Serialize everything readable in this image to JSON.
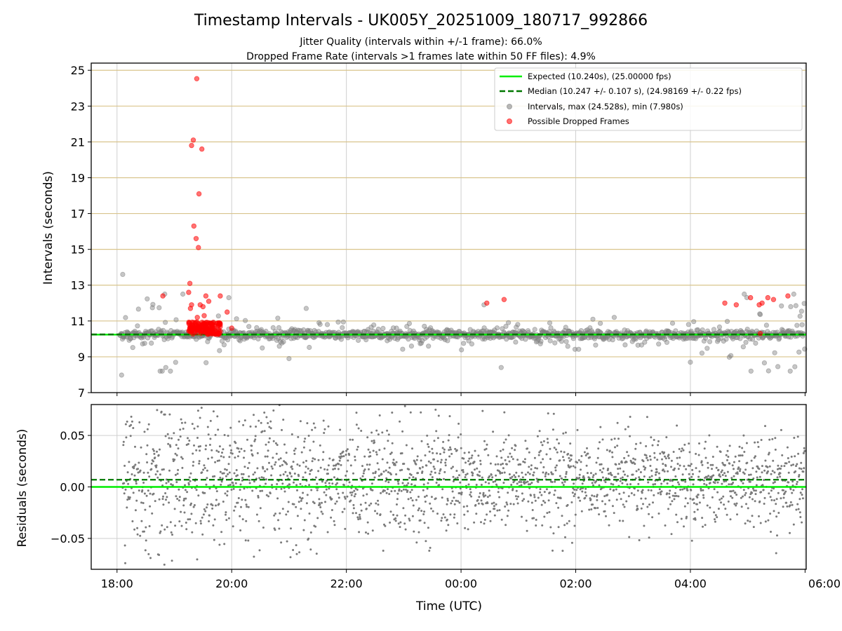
{
  "chart_data": [
    {
      "type": "scatter",
      "title": "Timestamp Intervals - UK005Y_20251009_180717_992866",
      "subtitle_1": "Jitter Quality (intervals within +/-1 frame): 66.0%",
      "subtitle_2": "Dropped Frame Rate (intervals >1 frames late within 50 FF files): 4.9%",
      "ylabel": "Intervals (seconds)",
      "ylim": [
        7,
        25.4
      ],
      "y_ticks": [
        "7",
        "9",
        "11",
        "13",
        "15",
        "17",
        "19",
        "21",
        "23",
        "25"
      ],
      "x_range_hours": [
        17.55,
        30.02
      ],
      "grid": true,
      "legend_placement": "top-right",
      "series": [
        {
          "name": "Expected (10.240s), (25.00000 fps)",
          "kind": "line",
          "y": 10.24,
          "color": "#00ee00"
        },
        {
          "name": "Median (10.247 +/- 0.107 s), (24.98169 +/- 0.22 fps)",
          "kind": "dashed-line",
          "y": 10.247,
          "color": "#007700"
        },
        {
          "name": "Intervals, max (24.528s), min (7.980s)",
          "kind": "scatter",
          "color": "#808080",
          "max": 24.528,
          "min": 7.98
        },
        {
          "name": "Possible Dropped Frames",
          "kind": "scatter",
          "color": "#ff0000",
          "points": [
            [
              19.39,
              24.53
            ],
            [
              19.33,
              21.1
            ],
            [
              19.3,
              20.8
            ],
            [
              19.48,
              20.6
            ],
            [
              19.43,
              18.1
            ],
            [
              19.34,
              16.3
            ],
            [
              19.38,
              15.6
            ],
            [
              19.42,
              15.1
            ],
            [
              19.27,
              13.1
            ],
            [
              19.25,
              12.6
            ],
            [
              19.55,
              12.4
            ],
            [
              19.8,
              12.4
            ],
            [
              18.8,
              12.4
            ],
            [
              19.6,
              12.1
            ],
            [
              19.45,
              11.9
            ],
            [
              19.3,
              11.9
            ],
            [
              19.5,
              11.8
            ],
            [
              19.28,
              11.7
            ],
            [
              19.92,
              11.5
            ],
            [
              19.52,
              11.3
            ],
            [
              19.4,
              11.2
            ],
            [
              19.6,
              10.9
            ],
            [
              19.8,
              10.8
            ],
            [
              20.0,
              10.6
            ],
            [
              24.45,
              12.0
            ],
            [
              24.75,
              12.2
            ],
            [
              28.6,
              12.0
            ],
            [
              28.8,
              11.9
            ],
            [
              29.05,
              12.3
            ],
            [
              29.2,
              11.9
            ],
            [
              29.25,
              12.0
            ],
            [
              29.35,
              12.3
            ],
            [
              29.45,
              12.2
            ],
            [
              29.7,
              12.4
            ],
            [
              29.22,
              10.3
            ]
          ]
        }
      ]
    },
    {
      "type": "scatter",
      "ylabel": "Residuals (seconds)",
      "xlabel": "Time (UTC)",
      "ylim": [
        -0.08,
        0.08
      ],
      "y_ticks": [
        "−0.05",
        "0.00",
        "0.05"
      ],
      "x_ticks": [
        "18:00",
        "20:00",
        "22:00",
        "00:00",
        "02:00",
        "04:00",
        "06:00"
      ],
      "grid": true,
      "series": [
        {
          "kind": "line",
          "y": 0.0,
          "color": "#00ee00"
        },
        {
          "kind": "dashed-line",
          "y": 0.007,
          "color": "#007700"
        },
        {
          "kind": "scatter",
          "color": "#808080"
        }
      ]
    }
  ]
}
